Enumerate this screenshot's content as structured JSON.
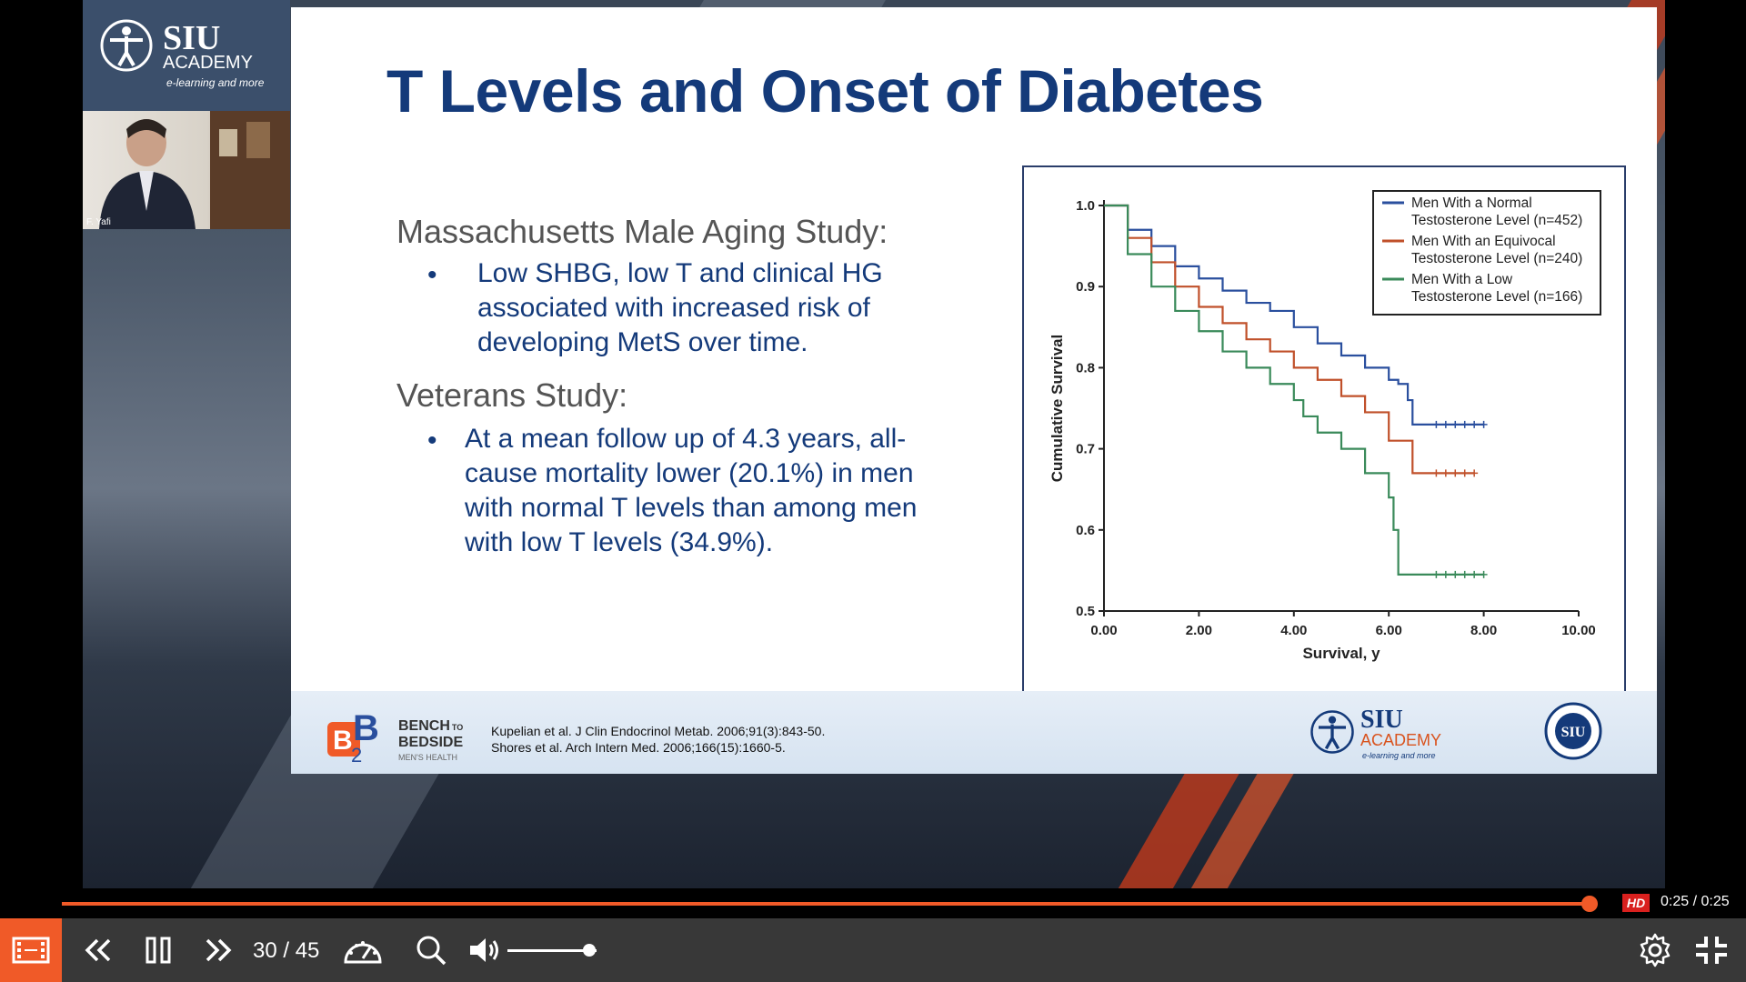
{
  "presenter": {
    "logo_title": "SIU",
    "logo_subtitle": "ACADEMY",
    "logo_tagline": "e-learning and more",
    "name_label": "F. Yafi"
  },
  "slide": {
    "title": "T Levels and Onset of Diabetes",
    "section1_heading": "Massachusetts Male Aging Study:",
    "section1_bullets": [
      "Low SHBG, low T and clinical HG",
      "associated with increased risk of",
      "developing MetS over time."
    ],
    "section2_heading": "Veterans Study:",
    "section2_bullets": [
      "At a mean follow up of 4.3 years, all-",
      "cause mortality lower (20.1%) in men",
      "with normal T levels than among men",
      "with low T levels (34.9%)."
    ],
    "bullet_symbol": "•",
    "footer": {
      "b2b_line1": "BENCH",
      "b2b_to": "TO",
      "b2b_line2": "BEDSIDE",
      "b2b_line3": "MEN'S HEALTH",
      "ref1": "Kupelian et al. J  Clin  Endocrinol  Metab. 2006;91(3):843-50.",
      "ref2": "Shores et al. Arch Intern Med. 2006;166(15):1660-5.",
      "siu_title": "SIU",
      "siu_subtitle": "ACADEMY",
      "siu_tagline": "e-learning and more",
      "seal_text": "SIU"
    }
  },
  "chart_data": {
    "type": "line",
    "xlabel": "Survival, y",
    "ylabel": "Cumulative Survival",
    "xlim": [
      0,
      10
    ],
    "ylim": [
      0.5,
      1.0
    ],
    "x_ticks": [
      "0.00",
      "2.00",
      "4.00",
      "6.00",
      "8.00",
      "10.00"
    ],
    "y_ticks": [
      "0.5",
      "0.6",
      "0.7",
      "0.8",
      "0.9",
      "1.0"
    ],
    "legend_position": "top-right",
    "series": [
      {
        "name": "Men With a Normal Testosterone Level (n=452)",
        "legend_lines": [
          "Men With a Normal",
          "Testosterone Level (n=452)"
        ],
        "color": "#2a4f9e",
        "points": [
          [
            0,
            1.0
          ],
          [
            0.5,
            0.97
          ],
          [
            1,
            0.95
          ],
          [
            1.5,
            0.925
          ],
          [
            2,
            0.91
          ],
          [
            2.5,
            0.895
          ],
          [
            3,
            0.88
          ],
          [
            3.5,
            0.87
          ],
          [
            4,
            0.85
          ],
          [
            4.5,
            0.83
          ],
          [
            5,
            0.815
          ],
          [
            5.5,
            0.8
          ],
          [
            6,
            0.785
          ],
          [
            6.2,
            0.78
          ],
          [
            6.4,
            0.76
          ],
          [
            6.5,
            0.73
          ],
          [
            7,
            0.73
          ],
          [
            8,
            0.73
          ]
        ]
      },
      {
        "name": "Men With an Equivocal Testosterone Level (n=240)",
        "legend_lines": [
          "Men With an Equivocal",
          "Testosterone Level (n=240)"
        ],
        "color": "#c0502a",
        "points": [
          [
            0,
            1.0
          ],
          [
            0.5,
            0.96
          ],
          [
            1,
            0.93
          ],
          [
            1.5,
            0.9
          ],
          [
            2,
            0.875
          ],
          [
            2.5,
            0.855
          ],
          [
            3,
            0.835
          ],
          [
            3.5,
            0.82
          ],
          [
            4,
            0.8
          ],
          [
            4.5,
            0.785
          ],
          [
            5,
            0.765
          ],
          [
            5.5,
            0.745
          ],
          [
            6,
            0.71
          ],
          [
            6.5,
            0.71
          ],
          [
            6.5,
            0.67
          ],
          [
            7,
            0.67
          ],
          [
            7.8,
            0.67
          ]
        ]
      },
      {
        "name": "Men With a Low Testosterone Level (n=166)",
        "legend_lines": [
          "Men With a Low",
          "Testosterone Level (n=166)"
        ],
        "color": "#3a8a5a",
        "points": [
          [
            0,
            1.0
          ],
          [
            0.5,
            0.94
          ],
          [
            1,
            0.9
          ],
          [
            1.5,
            0.87
          ],
          [
            2,
            0.845
          ],
          [
            2.5,
            0.82
          ],
          [
            3,
            0.8
          ],
          [
            3.5,
            0.78
          ],
          [
            4,
            0.76
          ],
          [
            4.2,
            0.74
          ],
          [
            4.5,
            0.72
          ],
          [
            5,
            0.7
          ],
          [
            5.5,
            0.67
          ],
          [
            6,
            0.64
          ],
          [
            6.1,
            0.6
          ],
          [
            6.2,
            0.58
          ],
          [
            6.2,
            0.545
          ],
          [
            7,
            0.545
          ],
          [
            8,
            0.545
          ]
        ]
      }
    ]
  },
  "player": {
    "progress_fraction": 0.995,
    "hd_label": "HD",
    "time": "0:25 / 0:25",
    "slide_counter": "30 / 45",
    "volume_fraction": 0.92,
    "accent_color": "#f05a28",
    "icons": [
      "chapters-icon",
      "previous-slide-icon",
      "pause-icon",
      "next-slide-icon",
      "speed-icon",
      "search-icon",
      "volume-icon",
      "settings-icon",
      "exit-fullscreen-icon"
    ]
  }
}
